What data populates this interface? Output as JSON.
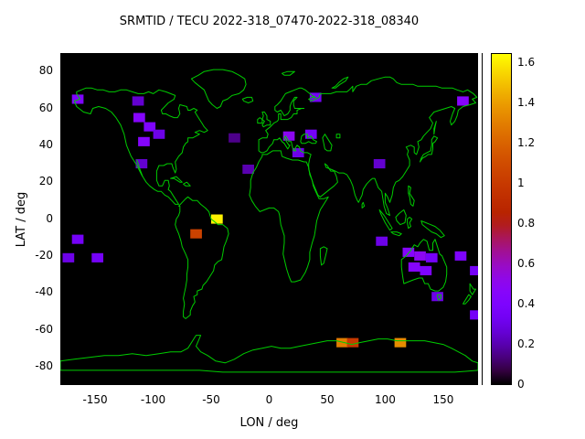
{
  "chart_data": {
    "type": "heatmap",
    "title": "SRMTID / TECU 2022-318_07470-2022-318_08340",
    "xlabel": "LON / deg",
    "ylabel": "LAT / deg",
    "xlim": [
      -180,
      180
    ],
    "ylim": [
      -90,
      90
    ],
    "xticks": [
      "-150",
      "-100",
      "-50",
      "0",
      "50",
      "100",
      "150"
    ],
    "yticks": [
      "80",
      "60",
      "40",
      "20",
      "0",
      "-20",
      "-40",
      "-60",
      "-80"
    ],
    "grid": false,
    "legend": "colorbar-right",
    "colorbar": {
      "range": [
        0,
        1.65
      ],
      "ticks": [
        "0",
        "0.2",
        "0.4",
        "0.6",
        "0.8",
        "1",
        "1.2",
        "1.4",
        "1.6"
      ],
      "tick_values": [
        0,
        0.2,
        0.4,
        0.6,
        0.8,
        1.0,
        1.2,
        1.4,
        1.6
      ],
      "palette": "gnuplot default pm3d (black - violet - red - orange - yellow)"
    },
    "cell_size_deg": {
      "lon": 10,
      "lat": 5
    },
    "cells": [
      {
        "lon": -165,
        "lat": 65,
        "value": 0.4
      },
      {
        "lon": -113,
        "lat": 64,
        "value": 0.25
      },
      {
        "lon": 40,
        "lat": 66,
        "value": 0.35
      },
      {
        "lon": 167,
        "lat": 64,
        "value": 0.45
      },
      {
        "lon": -112,
        "lat": 55,
        "value": 0.45
      },
      {
        "lon": -103,
        "lat": 50,
        "value": 0.4
      },
      {
        "lon": -108,
        "lat": 42,
        "value": 0.45
      },
      {
        "lon": -95,
        "lat": 46,
        "value": 0.3
      },
      {
        "lon": -30,
        "lat": 44,
        "value": 0.15
      },
      {
        "lon": 17,
        "lat": 45,
        "value": 0.5
      },
      {
        "lon": 36,
        "lat": 46,
        "value": 0.35
      },
      {
        "lon": 25,
        "lat": 36,
        "value": 0.3
      },
      {
        "lon": -110,
        "lat": 30,
        "value": 0.25
      },
      {
        "lon": -18,
        "lat": 27,
        "value": 0.2
      },
      {
        "lon": 95,
        "lat": 30,
        "value": 0.25
      },
      {
        "lon": -45,
        "lat": 0,
        "value": 1.62
      },
      {
        "lon": -63,
        "lat": -8,
        "value": 1.05
      },
      {
        "lon": -165,
        "lat": -11,
        "value": 0.35
      },
      {
        "lon": -173,
        "lat": -21,
        "value": 0.3
      },
      {
        "lon": -148,
        "lat": -21,
        "value": 0.35
      },
      {
        "lon": 97,
        "lat": -12,
        "value": 0.3
      },
      {
        "lon": 120,
        "lat": -18,
        "value": 0.45
      },
      {
        "lon": 130,
        "lat": -20,
        "value": 0.5
      },
      {
        "lon": 140,
        "lat": -21,
        "value": 0.35
      },
      {
        "lon": 125,
        "lat": -26,
        "value": 0.45
      },
      {
        "lon": 135,
        "lat": -28,
        "value": 0.4
      },
      {
        "lon": 165,
        "lat": -20,
        "value": 0.4
      },
      {
        "lon": 178,
        "lat": -28,
        "value": 0.35
      },
      {
        "lon": 145,
        "lat": -42,
        "value": 0.3
      },
      {
        "lon": 178,
        "lat": -52,
        "value": 0.35
      },
      {
        "lon": 63,
        "lat": -67,
        "value": 1.3
      },
      {
        "lon": 72,
        "lat": -67,
        "value": 1.0
      },
      {
        "lon": 113,
        "lat": -67,
        "value": 1.35
      }
    ],
    "colors": {
      "background": "#000000",
      "coastline": "#00cc00",
      "page_bg": "#ffffff",
      "text": "#000000"
    }
  }
}
